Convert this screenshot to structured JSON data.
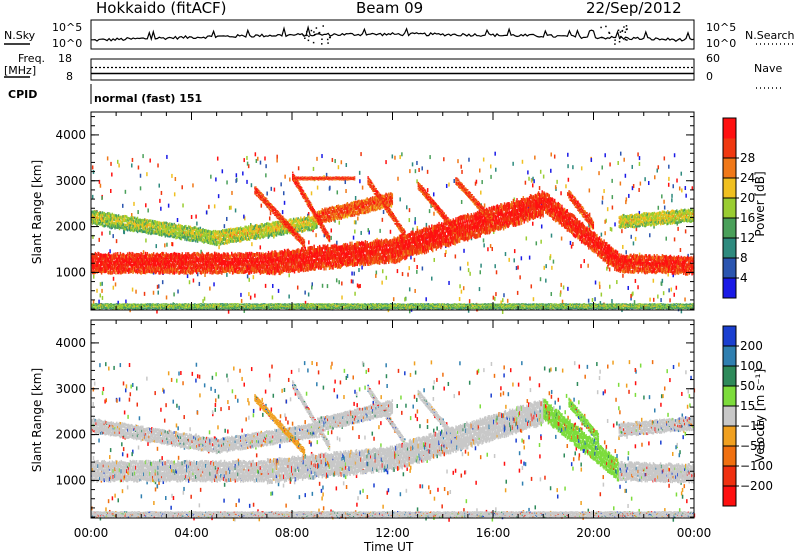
{
  "header": {
    "station": "Hokkaido (fitACF)",
    "beam": "Beam 09",
    "date": "22/Sep/2012"
  },
  "top_panels": {
    "nsky_label": "N.Sky",
    "nsky_ticks": [
      "10^5",
      "10^0"
    ],
    "nsearch_label": "N.Search",
    "freq_label": "Freq.",
    "freq_unit": "[MHz]",
    "freq_ticks": [
      "18",
      "8"
    ],
    "nave_label": "Nave",
    "nave_ticks": [
      "60",
      "0"
    ],
    "cpid_label": "CPID",
    "cpid_value": "normal (fast) 151"
  },
  "chart_data": [
    {
      "type": "heatmap",
      "panel": "power",
      "ylabel": "Slant Range [km]",
      "xlabel": "Time UT",
      "x_ticks": [
        "00:00",
        "04:00",
        "08:00",
        "12:00",
        "16:00",
        "20:00",
        "00:00"
      ],
      "x_range": [
        0,
        24
      ],
      "y_ticks": [
        "1000",
        "2000",
        "3000",
        "4000"
      ],
      "ylim": [
        180,
        4500
      ],
      "colorbar": {
        "label": "Power [dB]",
        "ticks": [
          "4",
          "8",
          "12",
          "16",
          "20",
          "24",
          "28"
        ],
        "range": [
          0,
          30
        ],
        "colors": [
          "#1a1ae6",
          "#2b55b0",
          "#2e8a7e",
          "#4aa05a",
          "#9acd32",
          "#f0c020",
          "#f07818",
          "#f03810",
          "#ff1010"
        ]
      },
      "bands": [
        {
          "t0": 0.0,
          "r0": 1200,
          "t1": 7.0,
          "r1": 1200,
          "width": 420,
          "level": 0.95
        },
        {
          "t0": 7.0,
          "r0": 1200,
          "t1": 12.0,
          "r1": 1480,
          "width": 480,
          "level": 0.95
        },
        {
          "t0": 12.0,
          "r0": 1480,
          "t1": 18.0,
          "r1": 2500,
          "width": 520,
          "level": 0.95
        },
        {
          "t0": 18.0,
          "r0": 2550,
          "t1": 21.0,
          "r1": 1200,
          "width": 420,
          "level": 0.95
        },
        {
          "t0": 21.0,
          "r0": 1200,
          "t1": 24.0,
          "r1": 1150,
          "width": 380,
          "level": 0.93
        },
        {
          "t0": 0.0,
          "r0": 2200,
          "t1": 5.0,
          "r1": 1750,
          "width": 300,
          "level": 0.55
        },
        {
          "t0": 5.0,
          "r0": 1750,
          "t1": 9.0,
          "r1": 2100,
          "width": 300,
          "level": 0.6
        },
        {
          "t0": 9.0,
          "r0": 2200,
          "t1": 12.0,
          "r1": 2600,
          "width": 300,
          "level": 0.85
        },
        {
          "t0": 21.0,
          "r0": 2100,
          "t1": 24.0,
          "r1": 2250,
          "width": 280,
          "level": 0.6
        },
        {
          "t0": 6.5,
          "r0": 2800,
          "t1": 8.5,
          "r1": 1600,
          "width": 170,
          "level": 0.92
        },
        {
          "t0": 8.0,
          "r0": 3100,
          "t1": 9.5,
          "r1": 1700,
          "width": 170,
          "level": 0.92
        },
        {
          "t0": 11.0,
          "r0": 3000,
          "t1": 12.5,
          "r1": 1800,
          "width": 170,
          "level": 0.9
        },
        {
          "t0": 13.0,
          "r0": 2900,
          "t1": 14.5,
          "r1": 1900,
          "width": 170,
          "level": 0.9
        },
        {
          "t0": 14.5,
          "r0": 3000,
          "t1": 16.0,
          "r1": 2100,
          "width": 160,
          "level": 0.88
        },
        {
          "t0": 19.0,
          "r0": 2700,
          "t1": 20.0,
          "r1": 2000,
          "width": 200,
          "level": 0.9
        },
        {
          "t0": 8.0,
          "r0": 3050,
          "t1": 10.5,
          "r1": 3050,
          "width": 80,
          "level": 0.9
        },
        {
          "t0": 0.0,
          "r0": 260,
          "t1": 24.0,
          "r1": 260,
          "width": 120,
          "level": 0.5
        }
      ]
    },
    {
      "type": "heatmap",
      "panel": "velocity",
      "ylabel": "Slant Range [km]",
      "xlabel": "Time UT",
      "x_ticks": [
        "00:00",
        "04:00",
        "08:00",
        "12:00",
        "16:00",
        "20:00",
        "00:00"
      ],
      "x_range": [
        0,
        24
      ],
      "y_ticks": [
        "1000",
        "2000",
        "3000",
        "4000"
      ],
      "ylim": [
        180,
        4500
      ],
      "colorbar": {
        "label": "Velocity [m s⁻¹]",
        "ticks": [
          "200",
          "100",
          "50",
          "15",
          "−15",
          "−50",
          "−100",
          "−200"
        ],
        "colors": [
          "#1a3fd0",
          "#2f7fb0",
          "#2e8a5a",
          "#7ddc3c",
          "#c8c8c8",
          "#f0a020",
          "#f07010",
          "#f03010",
          "#ff1010"
        ]
      },
      "bands": [
        {
          "t0": 0.0,
          "r0": 1200,
          "t1": 7.0,
          "r1": 1200,
          "width": 420,
          "color": 4
        },
        {
          "t0": 7.0,
          "r0": 1200,
          "t1": 12.0,
          "r1": 1480,
          "width": 480,
          "color": 4
        },
        {
          "t0": 12.0,
          "r0": 1480,
          "t1": 18.0,
          "r1": 2500,
          "width": 520,
          "color": 4
        },
        {
          "t0": 18.0,
          "r0": 2550,
          "t1": 21.0,
          "r1": 1200,
          "width": 420,
          "color": 3
        },
        {
          "t0": 21.0,
          "r0": 1200,
          "t1": 24.0,
          "r1": 1150,
          "width": 380,
          "color": 4
        },
        {
          "t0": 0.0,
          "r0": 2200,
          "t1": 5.0,
          "r1": 1750,
          "width": 300,
          "color": 4
        },
        {
          "t0": 5.0,
          "r0": 1750,
          "t1": 9.0,
          "r1": 2100,
          "width": 300,
          "color": 4
        },
        {
          "t0": 9.0,
          "r0": 2200,
          "t1": 12.0,
          "r1": 2600,
          "width": 300,
          "color": 4
        },
        {
          "t0": 21.0,
          "r0": 2100,
          "t1": 24.0,
          "r1": 2250,
          "width": 280,
          "color": 4
        },
        {
          "t0": 6.5,
          "r0": 2800,
          "t1": 8.5,
          "r1": 1600,
          "width": 150,
          "color": 5
        },
        {
          "t0": 8.0,
          "r0": 3100,
          "t1": 9.5,
          "r1": 1700,
          "width": 150,
          "color": 4
        },
        {
          "t0": 11.0,
          "r0": 3000,
          "t1": 12.5,
          "r1": 1800,
          "width": 150,
          "color": 4
        },
        {
          "t0": 13.0,
          "r0": 2900,
          "t1": 14.5,
          "r1": 1900,
          "width": 150,
          "color": 4
        },
        {
          "t0": 19.0,
          "r0": 2700,
          "t1": 20.2,
          "r1": 1900,
          "width": 200,
          "color": 3
        },
        {
          "t0": 0.0,
          "r0": 260,
          "t1": 24.0,
          "r1": 260,
          "width": 120,
          "color": 4
        }
      ]
    }
  ],
  "time_series": {
    "nsky_baseline_frac": 0.25,
    "freq_level_frac": 0.5
  }
}
